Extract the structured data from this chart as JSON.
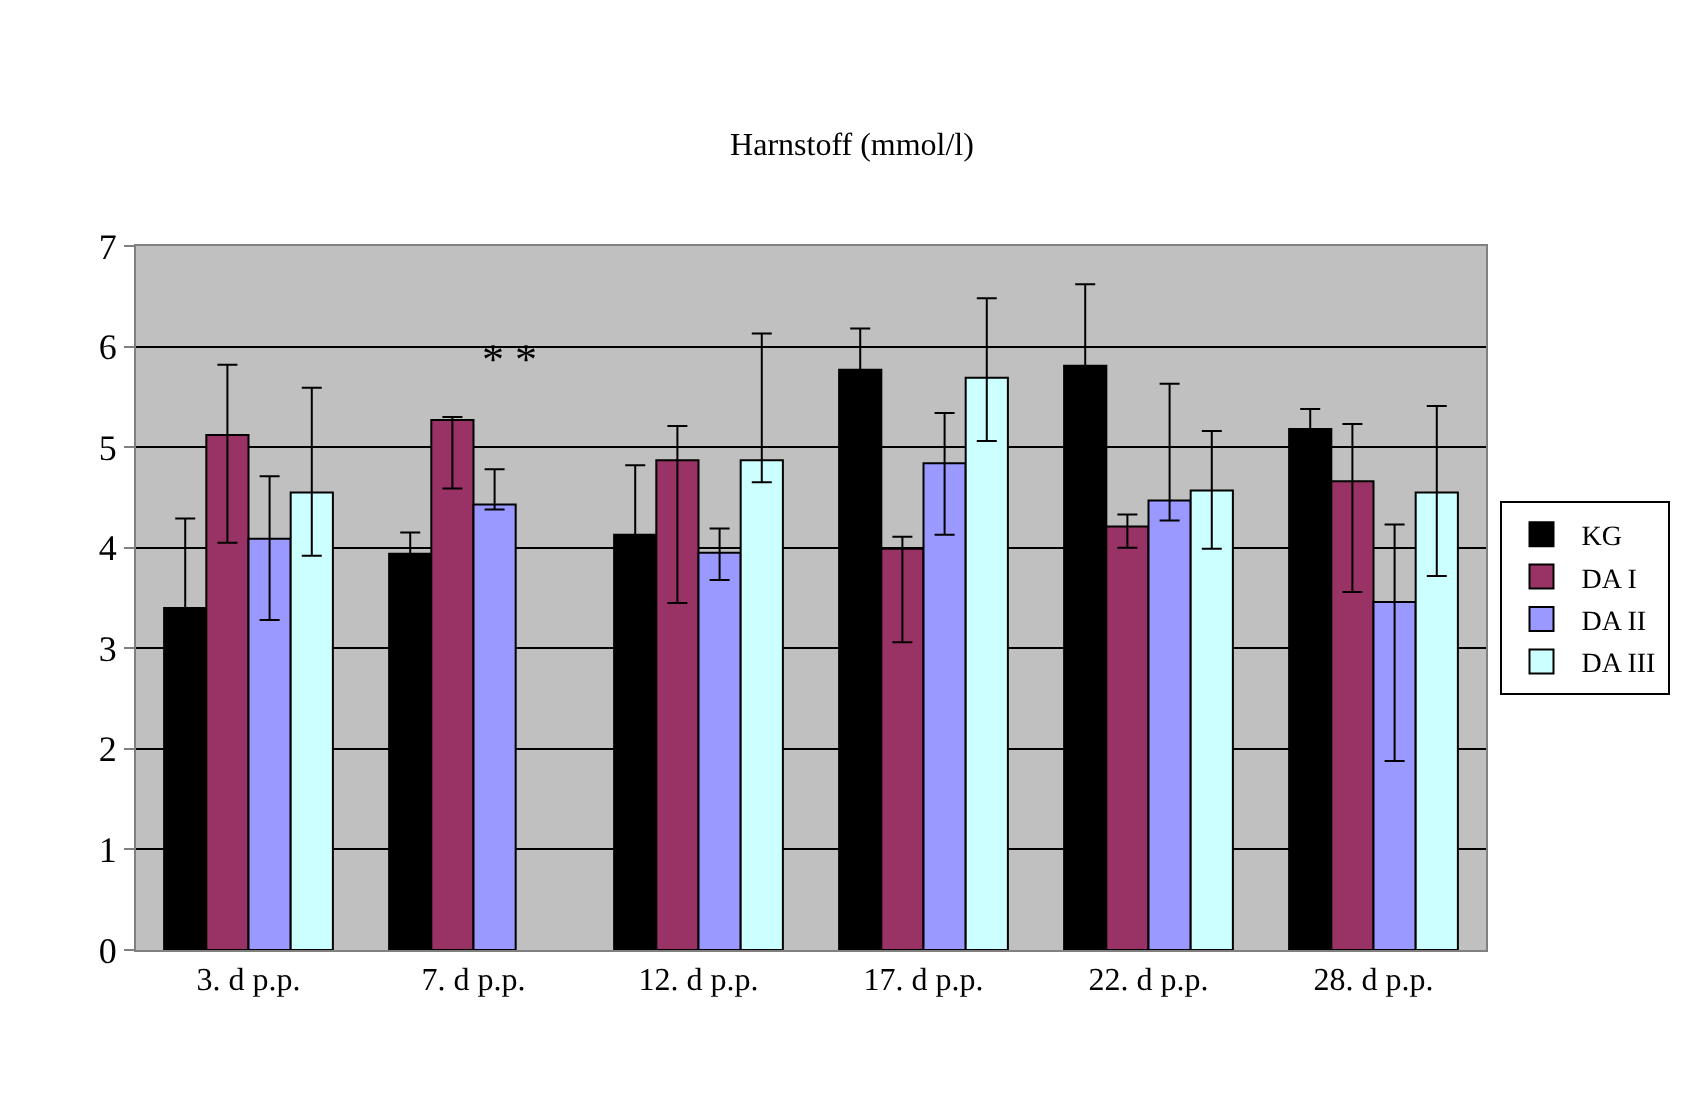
{
  "chart_data": {
    "type": "bar",
    "title": "Harnstoff (mmol/l)",
    "categories": [
      "3. d p.p.",
      "7. d p.p.",
      "12. d p.p.",
      "17. d p.p.",
      "22. d p.p.",
      "28. d p.p."
    ],
    "series": [
      {
        "name": "KG",
        "color": "#000000",
        "values": [
          3.4,
          3.94,
          4.13,
          5.77,
          5.81,
          5.18
        ],
        "errors": [
          0.89,
          0.21,
          0.69,
          0.41,
          0.81,
          0.2
        ]
      },
      {
        "name": "DA I",
        "color": "#993366",
        "values": [
          5.12,
          5.27,
          4.87,
          3.99,
          4.21,
          4.66
        ],
        "errors": [
          [
            4.05,
            5.82
          ],
          [
            4.59,
            5.3
          ],
          [
            3.45,
            5.21
          ],
          [
            3.06,
            4.11
          ],
          [
            4.0,
            4.33
          ],
          [
            3.56,
            5.23
          ]
        ]
      },
      {
        "name": "DA II",
        "color": "#9999ff",
        "values": [
          4.09,
          4.43,
          3.95,
          4.84,
          4.47,
          3.46
        ],
        "errors": [
          [
            3.28,
            4.71
          ],
          [
            4.38,
            4.78
          ],
          [
            3.68,
            4.19
          ],
          [
            4.13,
            5.34
          ],
          [
            4.27,
            5.63
          ],
          [
            1.88,
            4.23
          ]
        ]
      },
      {
        "name": "DA III",
        "color": "#ccffff",
        "values": [
          4.55,
          null,
          4.87,
          5.69,
          4.57,
          4.55
        ],
        "errors": [
          [
            3.92,
            5.59
          ],
          null,
          [
            4.65,
            6.13
          ],
          [
            5.06,
            6.48
          ],
          [
            3.99,
            5.16
          ],
          [
            3.72,
            5.41
          ]
        ]
      }
    ],
    "annotations": [
      "* *"
    ],
    "ylim": [
      0,
      7
    ],
    "yticks": [
      0,
      1,
      2,
      3,
      4,
      5,
      6,
      7
    ],
    "grid": "y",
    "legend": "right"
  }
}
